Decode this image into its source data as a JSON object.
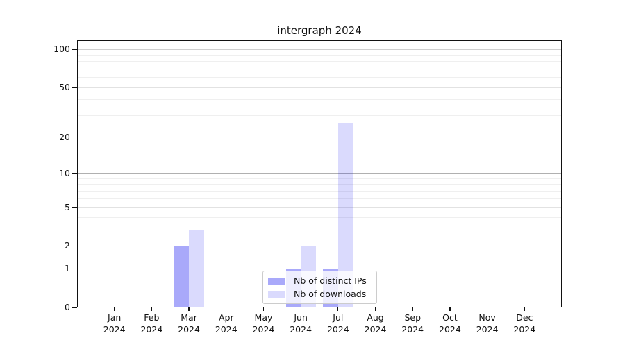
{
  "title": "intergraph 2024",
  "chart_data": {
    "type": "bar",
    "title": "intergraph 2024",
    "year": "2024",
    "months": [
      "Jan",
      "Feb",
      "Mar",
      "Apr",
      "May",
      "Jun",
      "Jul",
      "Aug",
      "Sep",
      "Oct",
      "Nov",
      "Dec"
    ],
    "categories": [
      "Jan 2024",
      "Feb 2024",
      "Mar 2024",
      "Apr 2024",
      "May 2024",
      "Jun 2024",
      "Jul 2024",
      "Aug 2024",
      "Sep 2024",
      "Oct 2024",
      "Nov 2024",
      "Dec 2024"
    ],
    "series": [
      {
        "name": "Nb of distinct IPs",
        "color": "#a9a9fa",
        "values": [
          0,
          0,
          2,
          0,
          0,
          1,
          1,
          0,
          0,
          0,
          0,
          0
        ]
      },
      {
        "name": "Nb of downloads",
        "color": "#dadafd",
        "values": [
          0,
          0,
          3,
          0,
          0,
          2,
          26,
          0,
          0,
          0,
          0,
          0
        ]
      }
    ],
    "yscale": "log1p",
    "ylim": [
      0,
      117
    ],
    "yticks": [
      0,
      1,
      2,
      5,
      10,
      20,
      50,
      100
    ],
    "ytick_labels": [
      "0",
      "1",
      "2",
      "5",
      "10",
      "20",
      "50",
      "100"
    ],
    "y_major_gridlines": [
      1,
      10
    ],
    "y_hundred_gridline": [
      100
    ],
    "y_mid_gridlines": [
      2,
      5,
      20,
      50
    ],
    "y_minor_gridlines": [
      3,
      4,
      6,
      7,
      8,
      9,
      30,
      40,
      60,
      70,
      80,
      90
    ],
    "grid": true,
    "legend_position": "lower center",
    "xlabel": "",
    "ylabel": ""
  }
}
